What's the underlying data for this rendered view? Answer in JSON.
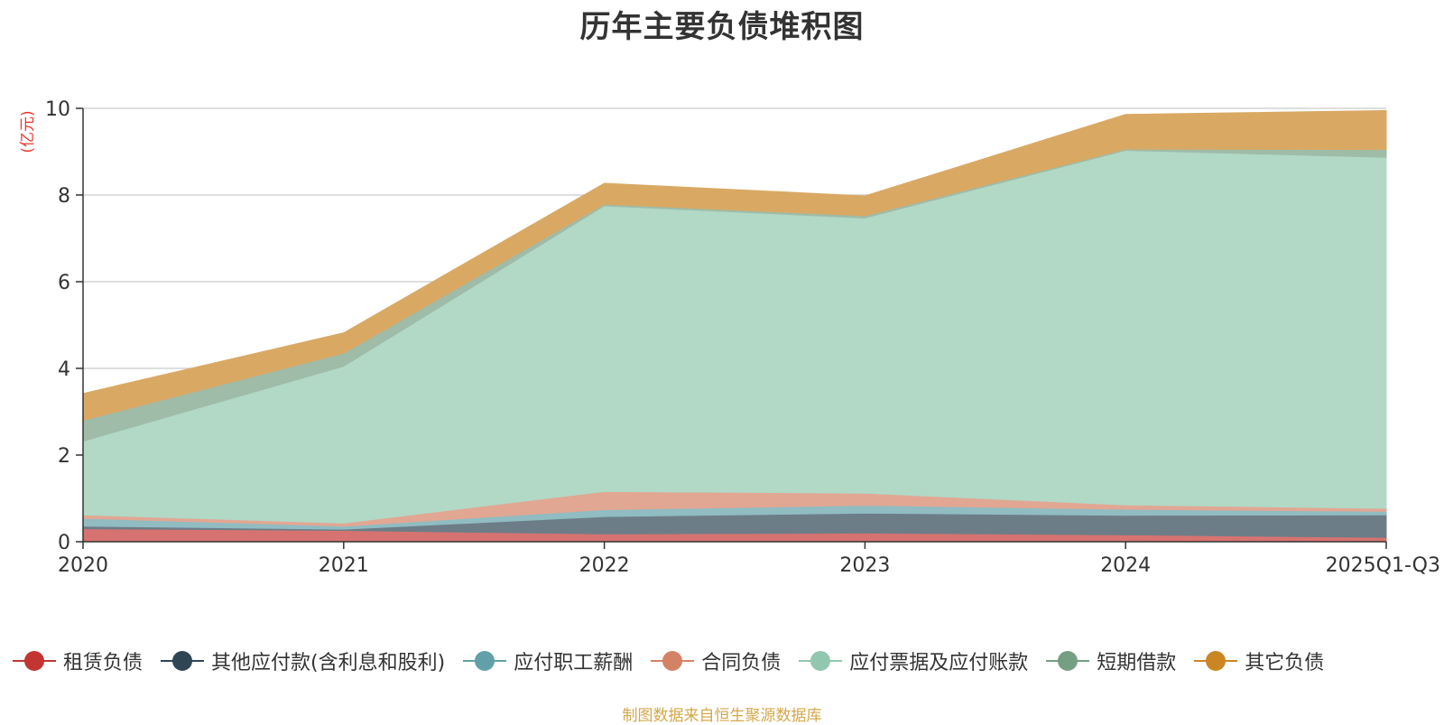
{
  "chart_data": {
    "type": "area",
    "stacked": true,
    "title": "历年主要负债堆积图",
    "ylabel": "(亿元)",
    "xlabel": "",
    "ylim": [
      0,
      10
    ],
    "yticks": [
      0,
      2,
      4,
      6,
      8,
      10
    ],
    "categories": [
      "2020",
      "2021",
      "2022",
      "2023",
      "2024",
      "2025Q1-Q3"
    ],
    "series": [
      {
        "name": "租赁负债",
        "color": "#c23531",
        "fill": "#d67370",
        "values": [
          0.3,
          0.26,
          0.18,
          0.2,
          0.16,
          0.1
        ]
      },
      {
        "name": "其他应付款(含利息和股利)",
        "color": "#2f4554",
        "fill": "#6d7d87",
        "values": [
          0.06,
          0.03,
          0.4,
          0.46,
          0.45,
          0.52
        ]
      },
      {
        "name": "应付职工薪酬",
        "color": "#61a0a8",
        "fill": "#90bcc2",
        "values": [
          0.18,
          0.07,
          0.16,
          0.18,
          0.14,
          0.08
        ]
      },
      {
        "name": "合同负债",
        "color": "#d48265",
        "fill": "#e1a793",
        "values": [
          0.08,
          0.07,
          0.42,
          0.28,
          0.1,
          0.07
        ]
      },
      {
        "name": "应付票据及应付账款",
        "color": "#91c7ae",
        "fill": "#b2d8c6",
        "values": [
          1.7,
          3.62,
          6.59,
          6.35,
          8.18,
          8.1
        ]
      },
      {
        "name": "短期借款",
        "color": "#749f83",
        "fill": "#9ebca8",
        "values": [
          0.48,
          0.3,
          0.04,
          0.05,
          0.03,
          0.18
        ]
      },
      {
        "name": "其它负债",
        "color": "#ca8622",
        "fill": "#d9a964",
        "values": [
          0.62,
          0.47,
          0.48,
          0.46,
          0.8,
          0.9
        ]
      }
    ],
    "legend_position": "bottom",
    "grid": true
  },
  "source_note": "制图数据来自恒生聚源数据库"
}
